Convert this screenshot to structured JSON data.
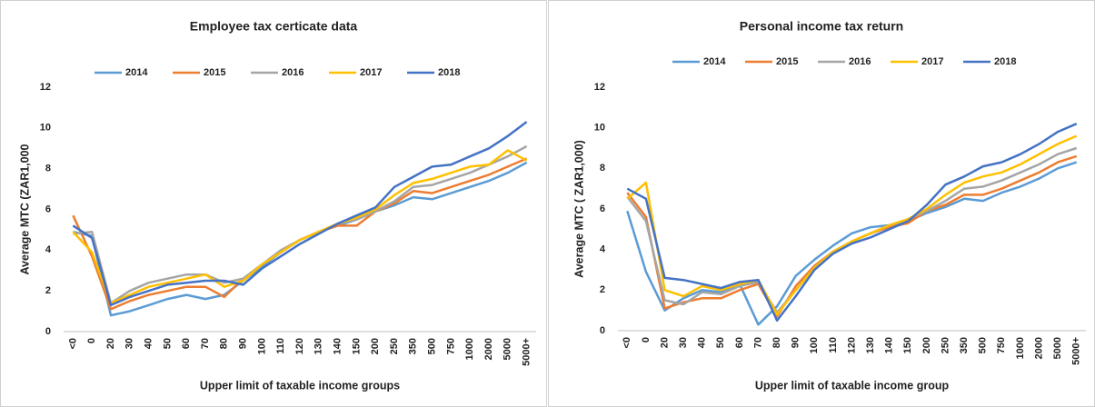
{
  "chart_data": [
    {
      "type": "line",
      "title": "Employee tax certicate data",
      "x_label": "Upper limit of taxable income groups",
      "y_label": "Average MTC (ZAR1,000",
      "categories": [
        "<0",
        "0",
        "20",
        "30",
        "40",
        "50",
        "60",
        "70",
        "80",
        "90",
        "100",
        "110",
        "120",
        "130",
        "140",
        "150",
        "200",
        "250",
        "350",
        "500",
        "750",
        "1000",
        "2000",
        "5000",
        "5000+"
      ],
      "ylim": [
        0,
        12
      ],
      "yticks": [
        0,
        2,
        4,
        6,
        8,
        10,
        12
      ],
      "grid": false,
      "series": [
        {
          "name": "2014",
          "color": "#5b9bd5",
          "values": [
            4.9,
            4.7,
            0.8,
            1.0,
            1.3,
            1.6,
            1.8,
            1.6,
            1.8,
            2.5,
            3.2,
            3.9,
            4.5,
            4.9,
            5.2,
            5.5,
            5.9,
            6.2,
            6.6,
            6.5,
            6.8,
            7.1,
            7.4,
            7.8,
            8.3
          ]
        },
        {
          "name": "2015",
          "color": "#ed7d31",
          "values": [
            5.7,
            3.7,
            1.1,
            1.5,
            1.8,
            2.0,
            2.2,
            2.2,
            1.7,
            2.6,
            3.3,
            3.9,
            4.5,
            4.9,
            5.2,
            5.2,
            5.9,
            6.3,
            6.9,
            6.8,
            7.1,
            7.4,
            7.7,
            8.1,
            8.5
          ]
        },
        {
          "name": "2016",
          "color": "#a5a5a5",
          "values": [
            4.8,
            4.9,
            1.4,
            2.0,
            2.4,
            2.6,
            2.8,
            2.8,
            2.4,
            2.6,
            3.3,
            4.0,
            4.5,
            4.9,
            5.3,
            5.5,
            5.9,
            6.4,
            7.1,
            7.2,
            7.5,
            7.8,
            8.2,
            8.6,
            9.1
          ]
        },
        {
          "name": "2017",
          "color": "#ffc000",
          "values": [
            4.9,
            3.9,
            1.4,
            1.8,
            2.2,
            2.4,
            2.6,
            2.8,
            2.2,
            2.5,
            3.3,
            3.9,
            4.5,
            4.9,
            5.3,
            5.6,
            6.0,
            6.7,
            7.3,
            7.5,
            7.8,
            8.1,
            8.2,
            8.9,
            8.4
          ]
        },
        {
          "name": "2018",
          "color": "#4472c4",
          "values": [
            5.2,
            4.6,
            1.3,
            1.7,
            2.0,
            2.3,
            2.4,
            2.5,
            2.5,
            2.3,
            3.1,
            3.7,
            4.3,
            4.8,
            5.3,
            5.7,
            6.1,
            7.1,
            7.6,
            8.1,
            8.2,
            8.6,
            9.0,
            9.6,
            10.3
          ]
        }
      ]
    },
    {
      "type": "line",
      "title": "Personal income tax return",
      "x_label": "Upper limit of taxable income group",
      "y_label": "Average MTC ( ZAR1,000)",
      "categories": [
        "<0",
        "0",
        "20",
        "30",
        "40",
        "50",
        "60",
        "70",
        "80",
        "90",
        "100",
        "110",
        "120",
        "130",
        "140",
        "150",
        "200",
        "250",
        "350",
        "500",
        "750",
        "1000",
        "2000",
        "5000",
        "5000+"
      ],
      "ylim": [
        0,
        12
      ],
      "yticks": [
        0,
        2,
        4,
        6,
        8,
        10,
        12
      ],
      "grid": false,
      "series": [
        {
          "name": "2014",
          "color": "#5b9bd5",
          "values": [
            5.9,
            2.9,
            1.0,
            1.6,
            2.0,
            1.9,
            2.3,
            0.3,
            1.2,
            2.7,
            3.5,
            4.2,
            4.8,
            5.1,
            5.2,
            5.4,
            5.8,
            6.1,
            6.5,
            6.4,
            6.8,
            7.1,
            7.5,
            8.0,
            8.3
          ]
        },
        {
          "name": "2015",
          "color": "#ed7d31",
          "values": [
            6.8,
            5.6,
            1.1,
            1.4,
            1.6,
            1.6,
            2.0,
            2.3,
            0.7,
            2.2,
            3.2,
            3.9,
            4.4,
            4.8,
            5.1,
            5.3,
            5.9,
            6.2,
            6.7,
            6.7,
            7.0,
            7.4,
            7.8,
            8.3,
            8.6
          ]
        },
        {
          "name": "2016",
          "color": "#a5a5a5",
          "values": [
            6.6,
            5.4,
            1.5,
            1.3,
            1.9,
            1.8,
            2.2,
            2.4,
            0.9,
            2.0,
            3.1,
            3.9,
            4.4,
            4.8,
            5.2,
            5.5,
            5.9,
            6.4,
            7.0,
            7.1,
            7.4,
            7.8,
            8.2,
            8.7,
            9.0
          ]
        },
        {
          "name": "2017",
          "color": "#ffc000",
          "values": [
            6.5,
            7.3,
            2.0,
            1.7,
            2.2,
            2.0,
            2.3,
            2.5,
            0.8,
            2.0,
            3.1,
            3.9,
            4.4,
            4.8,
            5.2,
            5.5,
            6.0,
            6.7,
            7.3,
            7.6,
            7.8,
            8.2,
            8.7,
            9.2,
            9.6
          ]
        },
        {
          "name": "2018",
          "color": "#4472c4",
          "values": [
            7.0,
            6.5,
            2.6,
            2.5,
            2.3,
            2.1,
            2.4,
            2.5,
            0.5,
            1.7,
            3.0,
            3.8,
            4.3,
            4.6,
            5.0,
            5.4,
            6.2,
            7.2,
            7.6,
            8.1,
            8.3,
            8.7,
            9.2,
            9.8,
            10.2
          ]
        }
      ]
    }
  ]
}
